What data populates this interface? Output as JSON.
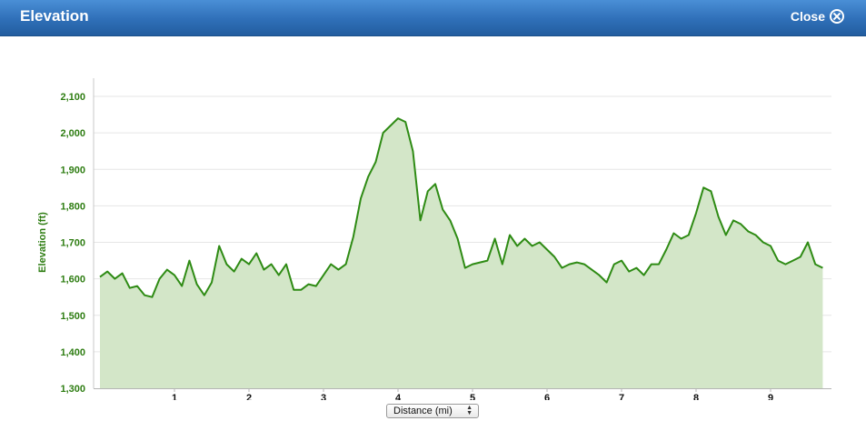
{
  "header": {
    "title": "Elevation",
    "close_label": "Close",
    "close_icon": "close-circle-icon"
  },
  "controls": {
    "axis_select_value": "Distance (mi)"
  },
  "colors": {
    "line": "#2e8b14",
    "fill": "#d3e6c8",
    "axis_label": "#2e7d12"
  },
  "chart_data": {
    "type": "area",
    "title": "",
    "xlabel": "",
    "ylabel": "Elevation (ft)",
    "xlim": [
      0,
      9.8
    ],
    "ylim": [
      1300,
      2100
    ],
    "xticks": [
      1,
      2,
      3,
      4,
      5,
      6,
      7,
      8,
      9
    ],
    "yticks": [
      1300,
      1400,
      1500,
      1600,
      1700,
      1800,
      1900,
      2000,
      2100
    ],
    "ytick_labels": [
      "1,300",
      "1,400",
      "1,500",
      "1,600",
      "1,700",
      "1,800",
      "1,900",
      "2,000",
      "2,100"
    ],
    "grid": true,
    "legend": "none",
    "series": [
      {
        "x": [
          0.0,
          0.1,
          0.2,
          0.3,
          0.4,
          0.5,
          0.6,
          0.7,
          0.8,
          0.9,
          1.0,
          1.1,
          1.2,
          1.3,
          1.4,
          1.5,
          1.6,
          1.7,
          1.8,
          1.9,
          2.0,
          2.1,
          2.2,
          2.3,
          2.4,
          2.5,
          2.6,
          2.7,
          2.8,
          2.9,
          3.0,
          3.1,
          3.2,
          3.3,
          3.4,
          3.5,
          3.6,
          3.7,
          3.8,
          3.9,
          4.0,
          4.1,
          4.2,
          4.3,
          4.4,
          4.5,
          4.6,
          4.7,
          4.8,
          4.9,
          5.0,
          5.1,
          5.2,
          5.3,
          5.4,
          5.5,
          5.6,
          5.7,
          5.8,
          5.9,
          6.0,
          6.1,
          6.2,
          6.3,
          6.4,
          6.5,
          6.6,
          6.7,
          6.8,
          6.9,
          7.0,
          7.1,
          7.2,
          7.3,
          7.4,
          7.5,
          7.6,
          7.7,
          7.8,
          7.9,
          8.0,
          8.1,
          8.2,
          8.3,
          8.4,
          8.5,
          8.6,
          8.7,
          8.8,
          8.9,
          9.0,
          9.1,
          9.2,
          9.3,
          9.4,
          9.5,
          9.6,
          9.7
        ],
        "y": [
          1605,
          1620,
          1600,
          1615,
          1575,
          1580,
          1555,
          1550,
          1600,
          1625,
          1610,
          1580,
          1650,
          1585,
          1555,
          1590,
          1690,
          1640,
          1620,
          1655,
          1640,
          1670,
          1625,
          1640,
          1610,
          1640,
          1570,
          1570,
          1585,
          1580,
          1610,
          1640,
          1625,
          1640,
          1715,
          1820,
          1880,
          1920,
          2000,
          2020,
          2040,
          2030,
          1950,
          1760,
          1840,
          1860,
          1790,
          1760,
          1710,
          1630,
          1640,
          1645,
          1650,
          1710,
          1640,
          1720,
          1690,
          1710,
          1690,
          1700,
          1680,
          1660,
          1630,
          1640,
          1645,
          1640,
          1625,
          1610,
          1590,
          1640,
          1650,
          1620,
          1630,
          1610,
          1640,
          1640,
          1680,
          1725,
          1710,
          1720,
          1780,
          1850,
          1840,
          1770,
          1720,
          1760,
          1750,
          1730,
          1720,
          1700,
          1690,
          1650,
          1640,
          1650,
          1660,
          1700,
          1640,
          1630
        ]
      }
    ]
  }
}
